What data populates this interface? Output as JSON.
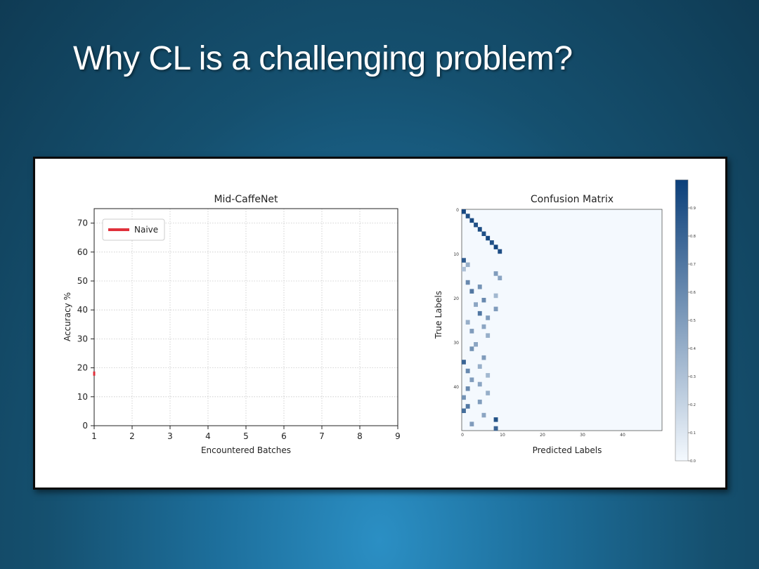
{
  "slide": {
    "title": "Why CL is a challenging problem?"
  },
  "colors": {
    "naive_line": "#e0303b",
    "cmap_low": "#f4f9fe",
    "cmap_high": "#0b3f7a"
  },
  "chart_data": [
    {
      "type": "line",
      "title": "Mid-CaffeNet",
      "xlabel": "Encountered Batches",
      "ylabel": "Accuracy %",
      "x_ticks": [
        "1",
        "2",
        "3",
        "4",
        "5",
        "6",
        "7",
        "8",
        "9"
      ],
      "y_ticks": [
        "0",
        "10",
        "20",
        "30",
        "40",
        "50",
        "60",
        "70"
      ],
      "xlim": [
        1,
        9
      ],
      "ylim": [
        0,
        75
      ],
      "grid": true,
      "legend_position": "top-left",
      "series": [
        {
          "name": "Naive",
          "color": "#e0303b",
          "x": [
            1
          ],
          "y": [
            18
          ]
        }
      ]
    },
    {
      "type": "heatmap",
      "title": "Confusion Matrix",
      "xlabel": "Predicted Labels",
      "ylabel": "True Labels",
      "x_ticks": [
        "0",
        "10",
        "20",
        "30",
        "40"
      ],
      "y_ticks": [
        "0",
        "10",
        "20",
        "30",
        "40"
      ],
      "grid_size": 50,
      "colorbar_ticks": [
        "0.0",
        "0.1",
        "0.2",
        "0.3",
        "0.4",
        "0.5",
        "0.6",
        "0.7",
        "0.8",
        "0.9"
      ],
      "colorbar_range": [
        0,
        1
      ],
      "description": "Classes 0-9 lie on the diagonal with high values; classes 10-49 are predicted scattered across classes 0-9; columns 10-49 near zero.",
      "diagonal": [
        {
          "true": 0,
          "pred": 0,
          "value": 0.95
        },
        {
          "true": 1,
          "pred": 1,
          "value": 0.92
        },
        {
          "true": 2,
          "pred": 2,
          "value": 0.94
        },
        {
          "true": 3,
          "pred": 3,
          "value": 0.9
        },
        {
          "true": 4,
          "pred": 4,
          "value": 0.93
        },
        {
          "true": 5,
          "pred": 5,
          "value": 0.91
        },
        {
          "true": 6,
          "pred": 6,
          "value": 0.95
        },
        {
          "true": 7,
          "pred": 7,
          "value": 0.9
        },
        {
          "true": 8,
          "pred": 8,
          "value": 0.96
        },
        {
          "true": 9,
          "pred": 9,
          "value": 0.92
        }
      ],
      "off_diagonal_cells": [
        {
          "true": 11,
          "pred": 0,
          "value": 0.85
        },
        {
          "true": 12,
          "pred": 1,
          "value": 0.4
        },
        {
          "true": 13,
          "pred": 0,
          "value": 0.3
        },
        {
          "true": 14,
          "pred": 8,
          "value": 0.5
        },
        {
          "true": 15,
          "pred": 9,
          "value": 0.45
        },
        {
          "true": 16,
          "pred": 1,
          "value": 0.6
        },
        {
          "true": 17,
          "pred": 4,
          "value": 0.55
        },
        {
          "true": 18,
          "pred": 2,
          "value": 0.7
        },
        {
          "true": 19,
          "pred": 8,
          "value": 0.35
        },
        {
          "true": 20,
          "pred": 5,
          "value": 0.6
        },
        {
          "true": 21,
          "pred": 3,
          "value": 0.45
        },
        {
          "true": 22,
          "pred": 8,
          "value": 0.5
        },
        {
          "true": 23,
          "pred": 4,
          "value": 0.7
        },
        {
          "true": 24,
          "pred": 6,
          "value": 0.5
        },
        {
          "true": 25,
          "pred": 1,
          "value": 0.4
        },
        {
          "true": 26,
          "pred": 5,
          "value": 0.45
        },
        {
          "true": 27,
          "pred": 2,
          "value": 0.5
        },
        {
          "true": 28,
          "pred": 6,
          "value": 0.4
        },
        {
          "true": 30,
          "pred": 3,
          "value": 0.45
        },
        {
          "true": 31,
          "pred": 2,
          "value": 0.55
        },
        {
          "true": 33,
          "pred": 5,
          "value": 0.5
        },
        {
          "true": 34,
          "pred": 0,
          "value": 0.8
        },
        {
          "true": 35,
          "pred": 4,
          "value": 0.4
        },
        {
          "true": 36,
          "pred": 1,
          "value": 0.6
        },
        {
          "true": 37,
          "pred": 6,
          "value": 0.35
        },
        {
          "true": 38,
          "pred": 2,
          "value": 0.5
        },
        {
          "true": 39,
          "pred": 4,
          "value": 0.45
        },
        {
          "true": 40,
          "pred": 1,
          "value": 0.6
        },
        {
          "true": 41,
          "pred": 6,
          "value": 0.4
        },
        {
          "true": 42,
          "pred": 0,
          "value": 0.55
        },
        {
          "true": 43,
          "pred": 4,
          "value": 0.5
        },
        {
          "true": 44,
          "pred": 1,
          "value": 0.7
        },
        {
          "true": 45,
          "pred": 0,
          "value": 0.75
        },
        {
          "true": 46,
          "pred": 5,
          "value": 0.45
        },
        {
          "true": 47,
          "pred": 8,
          "value": 0.9
        },
        {
          "true": 48,
          "pred": 2,
          "value": 0.5
        },
        {
          "true": 49,
          "pred": 8,
          "value": 0.8
        }
      ]
    }
  ]
}
